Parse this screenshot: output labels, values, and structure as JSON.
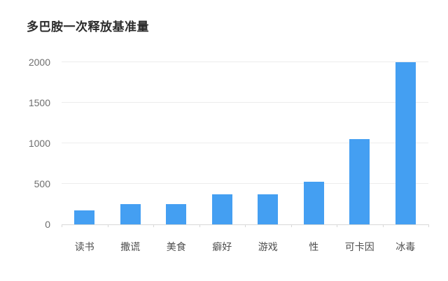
{
  "title": "多巴胺一次释放基准量",
  "colors": {
    "background": "#ffffff",
    "bar": "#449ff2",
    "gridline": "#ececec",
    "axis_line": "#d8d8d8",
    "title_text": "#2b2b2b",
    "y_tick_text": "#6e6e6e",
    "x_tick_text": "#4d4d4d"
  },
  "chart_data": {
    "type": "bar",
    "title": "多巴胺一次释放基准量",
    "categories": [
      "读书",
      "撒谎",
      "美食",
      "癖好",
      "游戏",
      "性",
      "可卡因",
      "冰毒"
    ],
    "values": [
      175,
      250,
      250,
      370,
      370,
      525,
      1050,
      2000
    ],
    "xlabel": "",
    "ylabel": "",
    "ylim": [
      0,
      2000
    ],
    "y_ticks": [
      0,
      500,
      1000,
      1500,
      2000
    ],
    "grid": true,
    "legend": false,
    "bar_color": "#449ff2"
  }
}
